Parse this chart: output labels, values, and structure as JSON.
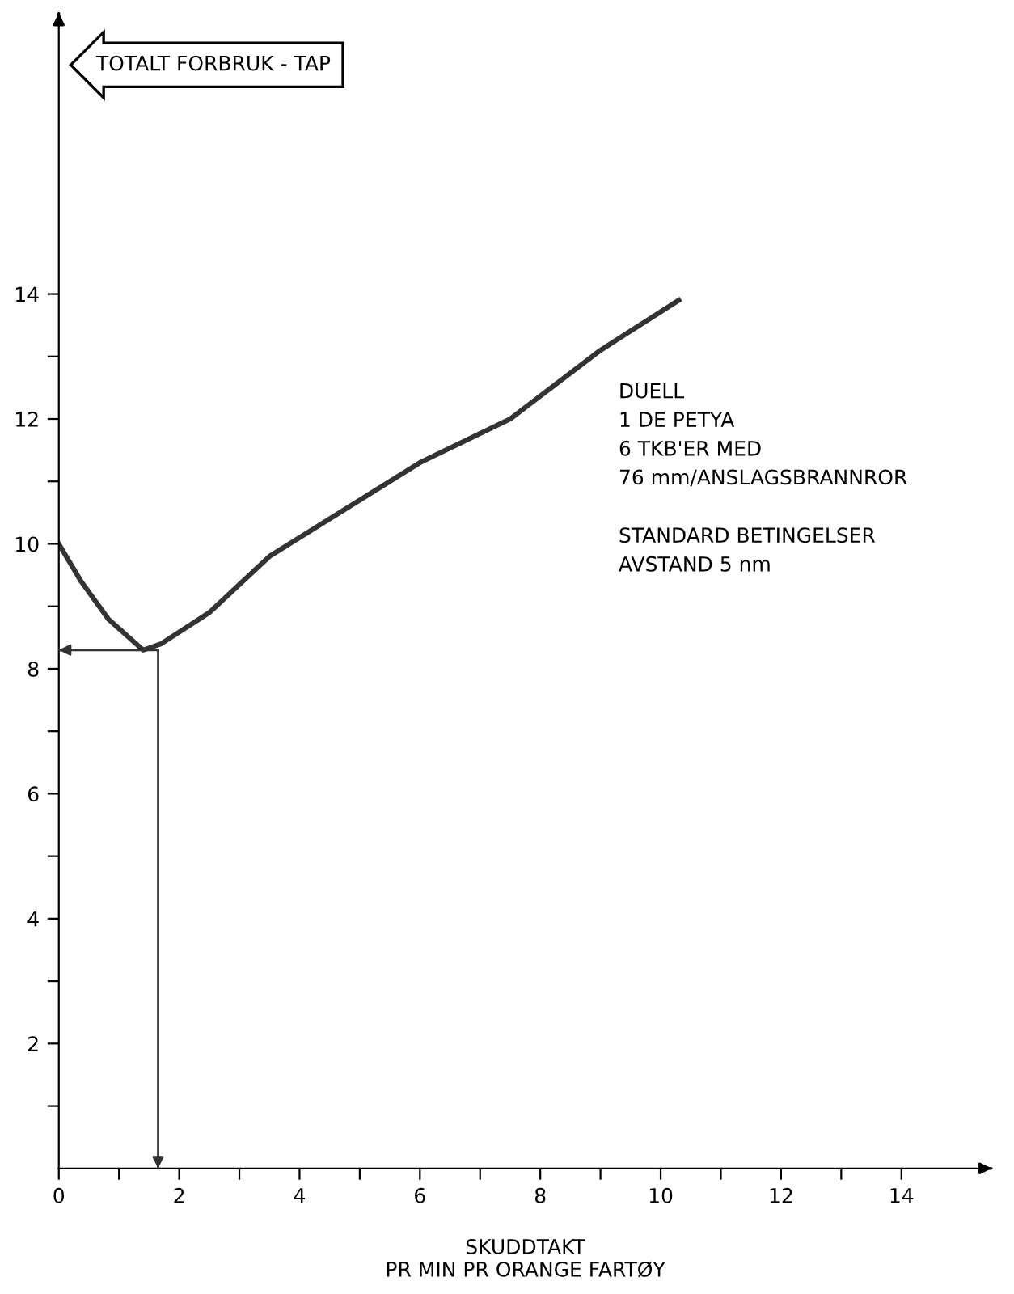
{
  "chart_data": {
    "type": "line",
    "ylabel": "TOTALT FORBRUK - TAP",
    "xlabel": "SKUDDTAKT\nPR MIN PR ORANGE FARTØY",
    "x": [
      0,
      0.37,
      0.82,
      1.4,
      1.7,
      2.5,
      3.5,
      5,
      6,
      7.5,
      9,
      10.3
    ],
    "series": [
      {
        "color": "#333333",
        "values": [
          10,
          9.4,
          8.8,
          8.3,
          8.4,
          8.9,
          9.8,
          10.7,
          11.3,
          12.0,
          13.1,
          13.9
        ]
      }
    ],
    "xlim": [
      0,
      15.5
    ],
    "ylim": [
      0,
      18.5
    ],
    "xticks": [
      0,
      {
        "value": 1,
        "label": null
      },
      2,
      {
        "value": 3,
        "label": null
      },
      4,
      {
        "value": 5,
        "label": null
      },
      6,
      {
        "value": 7,
        "label": null
      },
      8,
      {
        "value": 9,
        "label": null
      },
      10,
      {
        "value": 11,
        "label": null
      },
      12,
      {
        "value": 13,
        "label": null
      },
      14
    ],
    "yticks": [
      {
        "value": 1,
        "label": null
      },
      2,
      {
        "value": 3,
        "label": null
      },
      4,
      {
        "value": 5,
        "label": null
      },
      6,
      {
        "value": 7,
        "label": null
      },
      8,
      {
        "value": 9,
        "label": null
      },
      10,
      {
        "value": 11,
        "label": null
      },
      12,
      {
        "value": 13,
        "label": null
      },
      14
    ],
    "ref_lines": [
      {
        "axis": "y",
        "value": 8.3,
        "color": "#333333"
      },
      {
        "axis": "x",
        "value": 1.65,
        "color": "#333333"
      }
    ],
    "annotations": [
      "DUELL\n1 DE PETYA\n6 TKB'ER MED\n76 mm/ANSLAGSBRANNROR",
      "STANDARD BETINGELSER\nAVSTAND 5 nm"
    ],
    "grid": false,
    "legend": false,
    "marker": "none",
    "line_style": "solid"
  }
}
